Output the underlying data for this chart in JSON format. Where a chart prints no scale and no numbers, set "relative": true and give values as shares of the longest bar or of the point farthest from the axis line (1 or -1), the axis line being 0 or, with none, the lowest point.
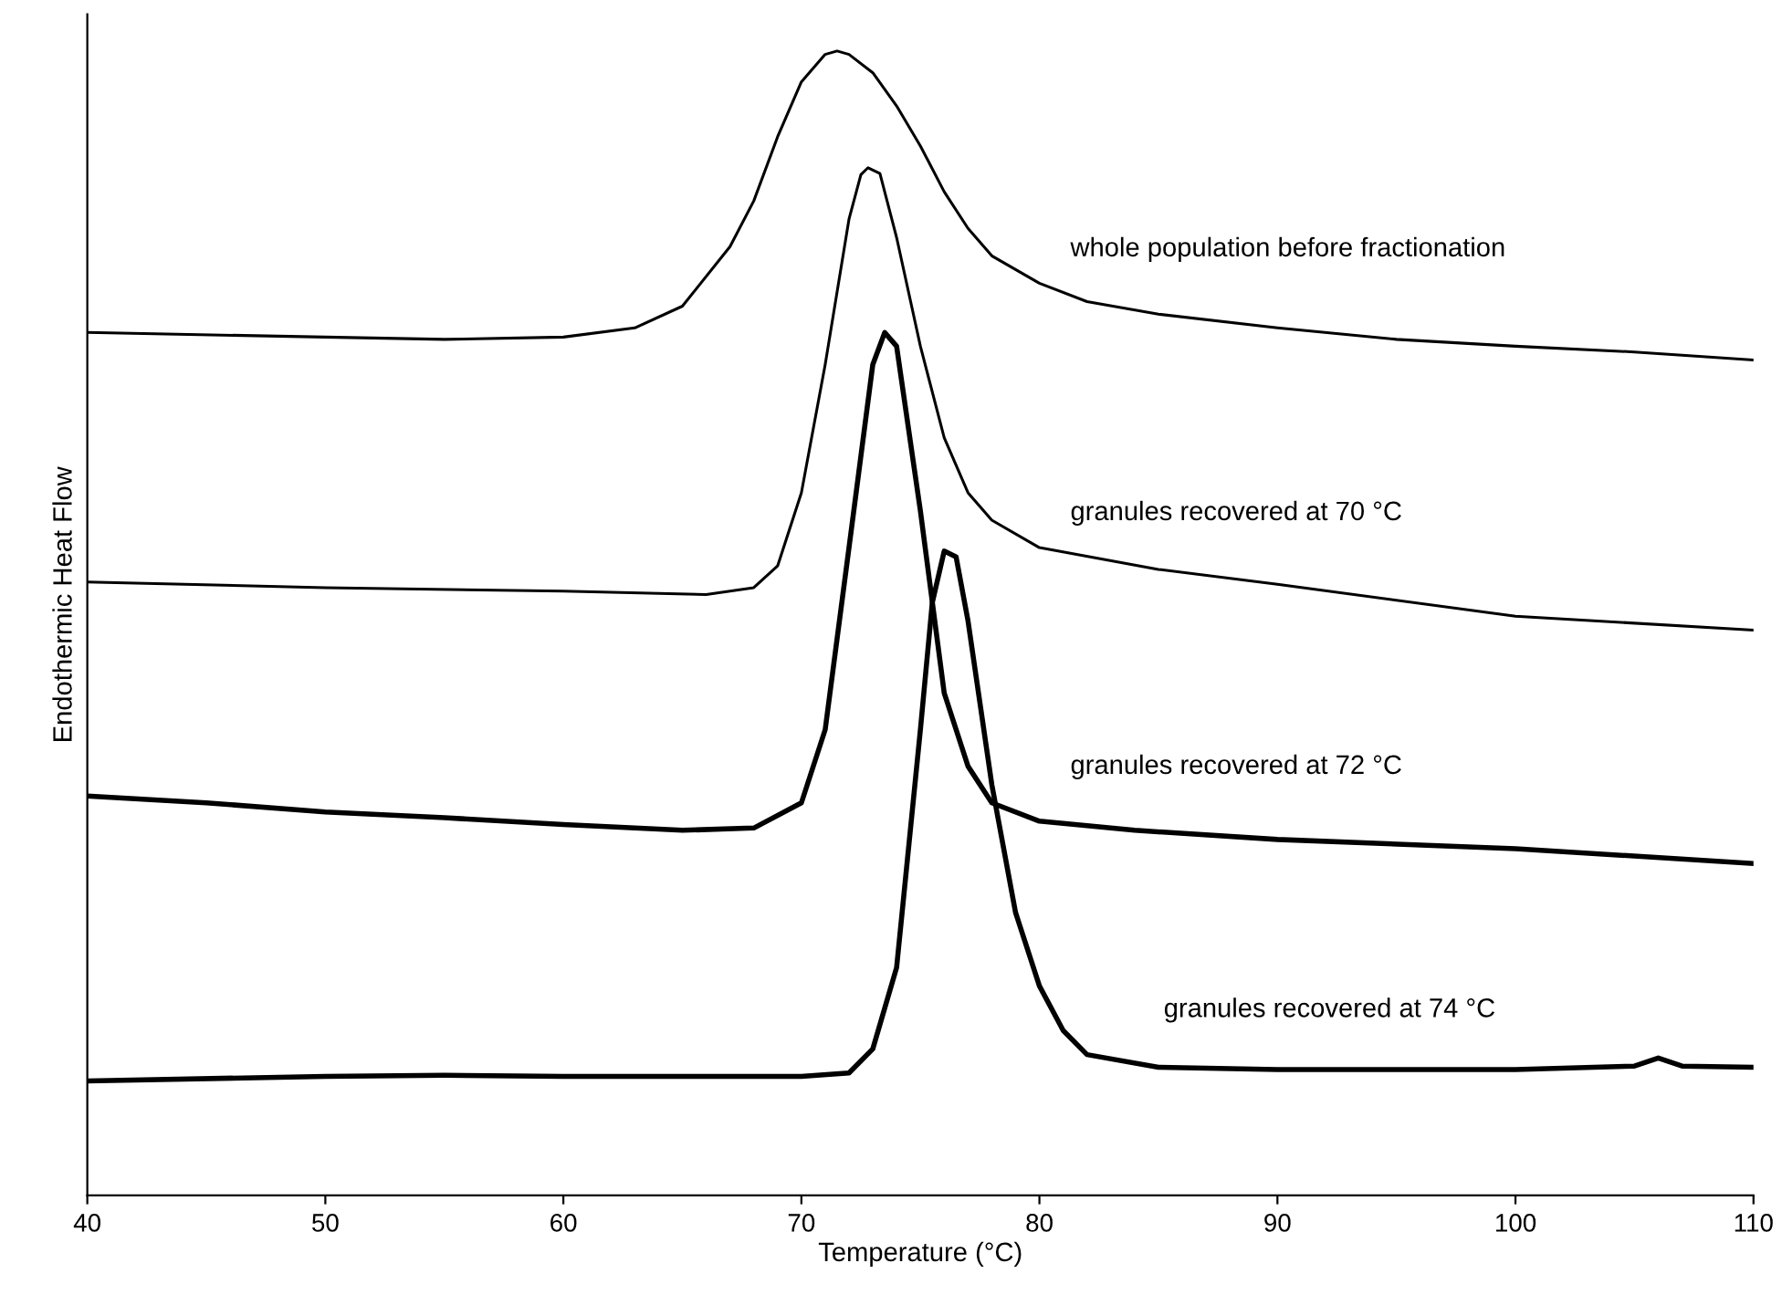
{
  "chart_data": {
    "type": "line",
    "relative": true,
    "xlabel": "Temperature (°C)",
    "ylabel": "Endothermic Heat Flow",
    "xlim": [
      40,
      110
    ],
    "xticks": [
      40,
      50,
      60,
      70,
      80,
      90,
      100,
      110
    ],
    "series": [
      {
        "name": "whole population before fractionation",
        "color": "#000000",
        "x": [
          40,
          50,
          55,
          60,
          63,
          65,
          67,
          68,
          69,
          70,
          71,
          71.5,
          72,
          73,
          74,
          75,
          76,
          77,
          78,
          80,
          82,
          85,
          90,
          95,
          100,
          105,
          110
        ],
        "values": [
          0.754,
          0.75,
          0.748,
          0.75,
          0.758,
          0.777,
          0.829,
          0.869,
          0.925,
          0.973,
          0.997,
          1.0,
          0.997,
          0.981,
          0.952,
          0.917,
          0.877,
          0.845,
          0.821,
          0.797,
          0.781,
          0.77,
          0.758,
          0.748,
          0.742,
          0.737,
          0.73
        ]
      },
      {
        "name": "granules recovered at 70 °C",
        "color": "#000000",
        "x": [
          40,
          50,
          60,
          66,
          68,
          69,
          70,
          71,
          72,
          72.5,
          72.8,
          73.3,
          74,
          75,
          76,
          77,
          78,
          80,
          85,
          90,
          100,
          110
        ],
        "values": [
          0.536,
          0.531,
          0.528,
          0.525,
          0.531,
          0.55,
          0.614,
          0.726,
          0.853,
          0.892,
          0.898,
          0.893,
          0.837,
          0.742,
          0.662,
          0.614,
          0.59,
          0.566,
          0.547,
          0.534,
          0.506,
          0.494
        ]
      },
      {
        "name": "granules recovered at 72 °C",
        "color": "#000000",
        "x": [
          40,
          45,
          50,
          55,
          60,
          65,
          68,
          70,
          71,
          72,
          73,
          73.5,
          74,
          75,
          76,
          77,
          78,
          80,
          84,
          90,
          100,
          110
        ],
        "values": [
          0.349,
          0.343,
          0.335,
          0.33,
          0.324,
          0.319,
          0.321,
          0.343,
          0.407,
          0.566,
          0.726,
          0.754,
          0.742,
          0.598,
          0.439,
          0.375,
          0.343,
          0.327,
          0.319,
          0.311,
          0.303,
          0.29
        ]
      },
      {
        "name": "granules recovered at 74 °C",
        "color": "#000000",
        "x": [
          40,
          50,
          55,
          60,
          70,
          72,
          73,
          74,
          75,
          75.5,
          76,
          76.5,
          77,
          78,
          79,
          80,
          81,
          82,
          85,
          90,
          100,
          105,
          106,
          107,
          110
        ],
        "values": [
          0.1,
          0.104,
          0.105,
          0.104,
          0.104,
          0.107,
          0.128,
          0.199,
          0.407,
          0.518,
          0.563,
          0.558,
          0.502,
          0.359,
          0.247,
          0.183,
          0.144,
          0.123,
          0.112,
          0.11,
          0.11,
          0.113,
          0.12,
          0.113,
          0.112
        ]
      }
    ]
  }
}
